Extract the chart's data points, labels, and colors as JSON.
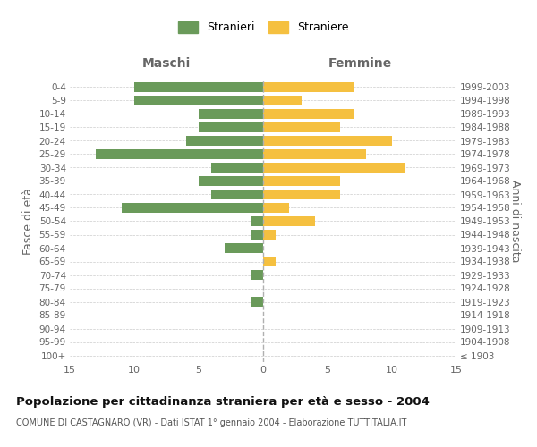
{
  "age_groups": [
    "100+",
    "95-99",
    "90-94",
    "85-89",
    "80-84",
    "75-79",
    "70-74",
    "65-69",
    "60-64",
    "55-59",
    "50-54",
    "45-49",
    "40-44",
    "35-39",
    "30-34",
    "25-29",
    "20-24",
    "15-19",
    "10-14",
    "5-9",
    "0-4"
  ],
  "birth_years": [
    "≤ 1903",
    "1904-1908",
    "1909-1913",
    "1914-1918",
    "1919-1923",
    "1924-1928",
    "1929-1933",
    "1934-1938",
    "1939-1943",
    "1944-1948",
    "1949-1953",
    "1954-1958",
    "1959-1963",
    "1964-1968",
    "1969-1973",
    "1974-1978",
    "1979-1983",
    "1984-1988",
    "1989-1993",
    "1994-1998",
    "1999-2003"
  ],
  "males": [
    0,
    0,
    0,
    0,
    1,
    0,
    1,
    0,
    3,
    1,
    1,
    11,
    4,
    5,
    4,
    13,
    6,
    5,
    5,
    10,
    10
  ],
  "females": [
    0,
    0,
    0,
    0,
    0,
    0,
    0,
    1,
    0,
    1,
    4,
    2,
    6,
    6,
    11,
    8,
    10,
    6,
    7,
    3,
    7
  ],
  "male_color": "#6a9a5a",
  "female_color": "#f5c040",
  "title": "Popolazione per cittadinanza straniera per età e sesso - 2004",
  "subtitle": "COMUNE DI CASTAGNARO (VR) - Dati ISTAT 1° gennaio 2004 - Elaborazione TUTTITALIA.IT",
  "xlabel_left": "Maschi",
  "xlabel_right": "Femmine",
  "ylabel_left": "Fasce di età",
  "ylabel_right": "Anni di nascita",
  "legend_male": "Stranieri",
  "legend_female": "Straniere",
  "xmin": -15,
  "xmax": 15,
  "grid_color": "#cccccc"
}
